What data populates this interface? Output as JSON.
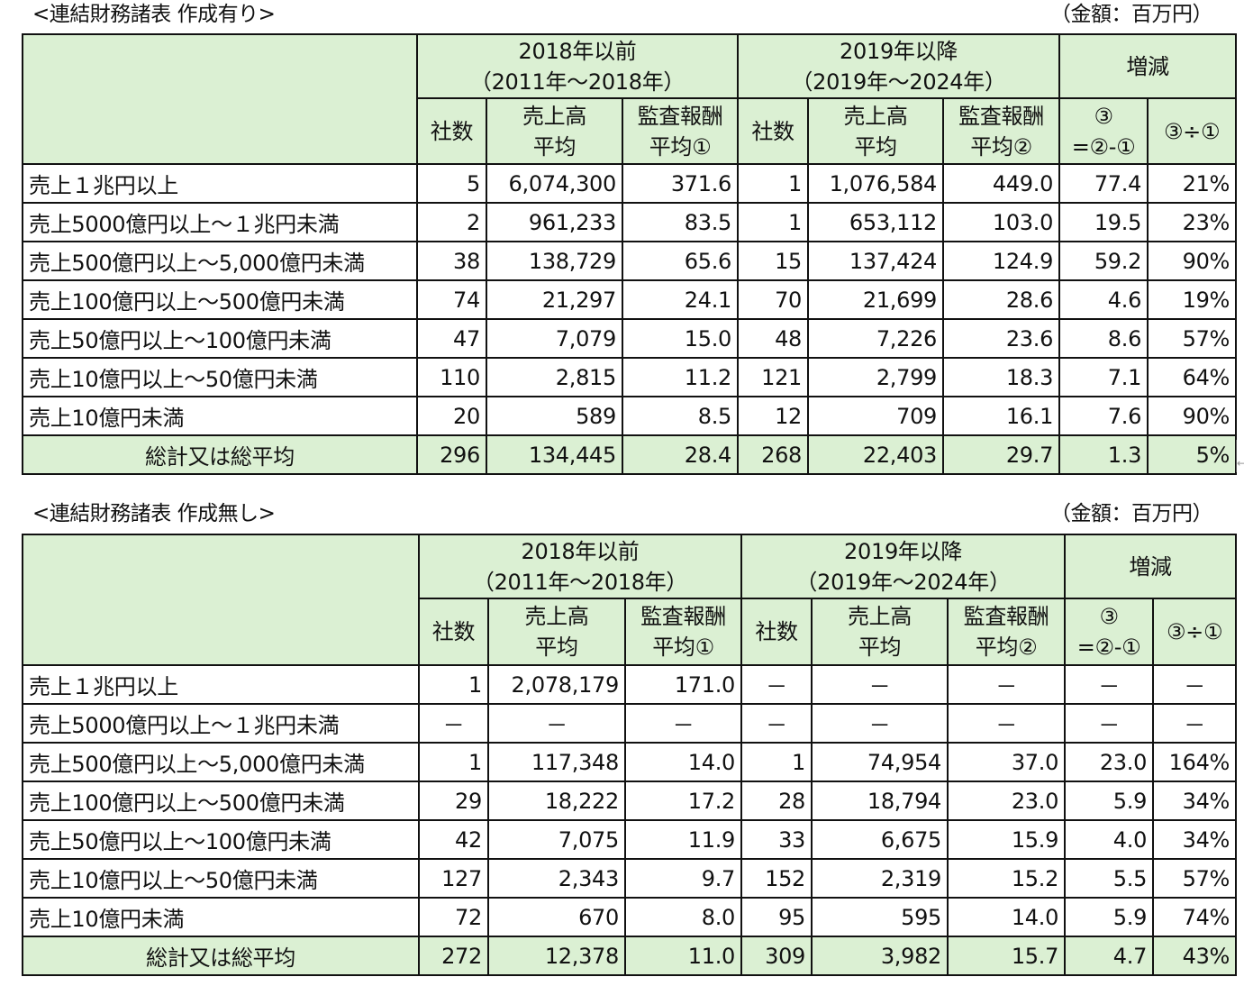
{
  "tables": [
    {
      "title": "<連結財務諸表 作成有り>",
      "unit_note": "（金額：百万円）",
      "header": {
        "group_before": {
          "line1": "2018年以前",
          "line2": "（2011年～2018年）"
        },
        "group_after": {
          "line1": "2019年以降",
          "line2": "（2019年～2024年）"
        },
        "group_change": {
          "label": "増減"
        },
        "sub": {
          "count": "社数",
          "sales_line1": "売上高",
          "sales_line2": "平均",
          "fee1_line1": "監査報酬",
          "fee1_line2": "平均①",
          "fee2_line1": "監査報酬",
          "fee2_line2": "平均②",
          "diff_line1": "③",
          "diff_line2": "=②-①",
          "ratio": "③÷①"
        }
      },
      "rows": [
        {
          "label": "売上１兆円以上",
          "c1": "5",
          "s1": "6,074,300",
          "f1": "371.6",
          "c2": "1",
          "s2": "1,076,584",
          "f2": "449.0",
          "d": "77.4",
          "r": "21%"
        },
        {
          "label": "売上5000億円以上～１兆円未満",
          "c1": "2",
          "s1": "961,233",
          "f1": "83.5",
          "c2": "1",
          "s2": "653,112",
          "f2": "103.0",
          "d": "19.5",
          "r": "23%"
        },
        {
          "label": "売上500億円以上～5,000億円未満",
          "c1": "38",
          "s1": "138,729",
          "f1": "65.6",
          "c2": "15",
          "s2": "137,424",
          "f2": "124.9",
          "d": "59.2",
          "r": "90%"
        },
        {
          "label": "売上100億円以上～500億円未満",
          "c1": "74",
          "s1": "21,297",
          "f1": "24.1",
          "c2": "70",
          "s2": "21,699",
          "f2": "28.6",
          "d": "4.6",
          "r": "19%"
        },
        {
          "label": "売上50億円以上～100億円未満",
          "c1": "47",
          "s1": "7,079",
          "f1": "15.0",
          "c2": "48",
          "s2": "7,226",
          "f2": "23.6",
          "d": "8.6",
          "r": "57%"
        },
        {
          "label": "売上10億円以上～50億円未満",
          "c1": "110",
          "s1": "2,815",
          "f1": "11.2",
          "c2": "121",
          "s2": "2,799",
          "f2": "18.3",
          "d": "7.1",
          "r": "64%"
        },
        {
          "label": "売上10億円未満",
          "c1": "20",
          "s1": "589",
          "f1": "8.5",
          "c2": "12",
          "s2": "709",
          "f2": "16.1",
          "d": "7.6",
          "r": "90%"
        }
      ],
      "total": {
        "label": "総計又は総平均",
        "c1": "296",
        "s1": "134,445",
        "f1": "28.4",
        "c2": "268",
        "s2": "22,403",
        "f2": "29.7",
        "d": "1.3",
        "r": "5%"
      }
    },
    {
      "title": "<連結財務諸表 作成無し>",
      "unit_note": "（金額：百万円）",
      "header": {
        "group_before": {
          "line1": "2018年以前",
          "line2": "（2011年～2018年）"
        },
        "group_after": {
          "line1": "2019年以降",
          "line2": "（2019年～2024年）"
        },
        "group_change": {
          "label": "増減"
        },
        "sub": {
          "count": "社数",
          "sales_line1": "売上高",
          "sales_line2": "平均",
          "fee1_line1": "監査報酬",
          "fee1_line2": "平均①",
          "fee2_line1": "監査報酬",
          "fee2_line2": "平均②",
          "diff_line1": "③",
          "diff_line2": "=②-①",
          "ratio": "③÷①"
        }
      },
      "rows": [
        {
          "label": "売上１兆円以上",
          "c1": "1",
          "s1": "2,078,179",
          "f1": "171.0",
          "c2": "－",
          "s2": "－",
          "f2": "－",
          "d": "－",
          "r": "－"
        },
        {
          "label": "売上5000億円以上～１兆円未満",
          "c1": "－",
          "s1": "－",
          "f1": "－",
          "c2": "－",
          "s2": "－",
          "f2": "－",
          "d": "－",
          "r": "－"
        },
        {
          "label": "売上500億円以上～5,000億円未満",
          "c1": "1",
          "s1": "117,348",
          "f1": "14.0",
          "c2": "1",
          "s2": "74,954",
          "f2": "37.0",
          "d": "23.0",
          "r": "164%"
        },
        {
          "label": "売上100億円以上～500億円未満",
          "c1": "29",
          "s1": "18,222",
          "f1": "17.2",
          "c2": "28",
          "s2": "18,794",
          "f2": "23.0",
          "d": "5.9",
          "r": "34%"
        },
        {
          "label": "売上50億円以上～100億円未満",
          "c1": "42",
          "s1": "7,075",
          "f1": "11.9",
          "c2": "33",
          "s2": "6,675",
          "f2": "15.9",
          "d": "4.0",
          "r": "34%"
        },
        {
          "label": "売上10億円以上～50億円未満",
          "c1": "127",
          "s1": "2,343",
          "f1": "9.7",
          "c2": "152",
          "s2": "2,319",
          "f2": "15.2",
          "d": "5.5",
          "r": "57%"
        },
        {
          "label": "売上10億円未満",
          "c1": "72",
          "s1": "670",
          "f1": "8.0",
          "c2": "95",
          "s2": "595",
          "f2": "14.0",
          "d": "5.9",
          "r": "74%"
        }
      ],
      "total": {
        "label": "総計又は総平均",
        "c1": "272",
        "s1": "12,378",
        "f1": "11.0",
        "c2": "309",
        "s2": "3,982",
        "f2": "15.7",
        "d": "4.7",
        "r": "43%"
      }
    }
  ],
  "colors": {
    "header_bg": "#dbf0d3",
    "border": "#111111"
  }
}
